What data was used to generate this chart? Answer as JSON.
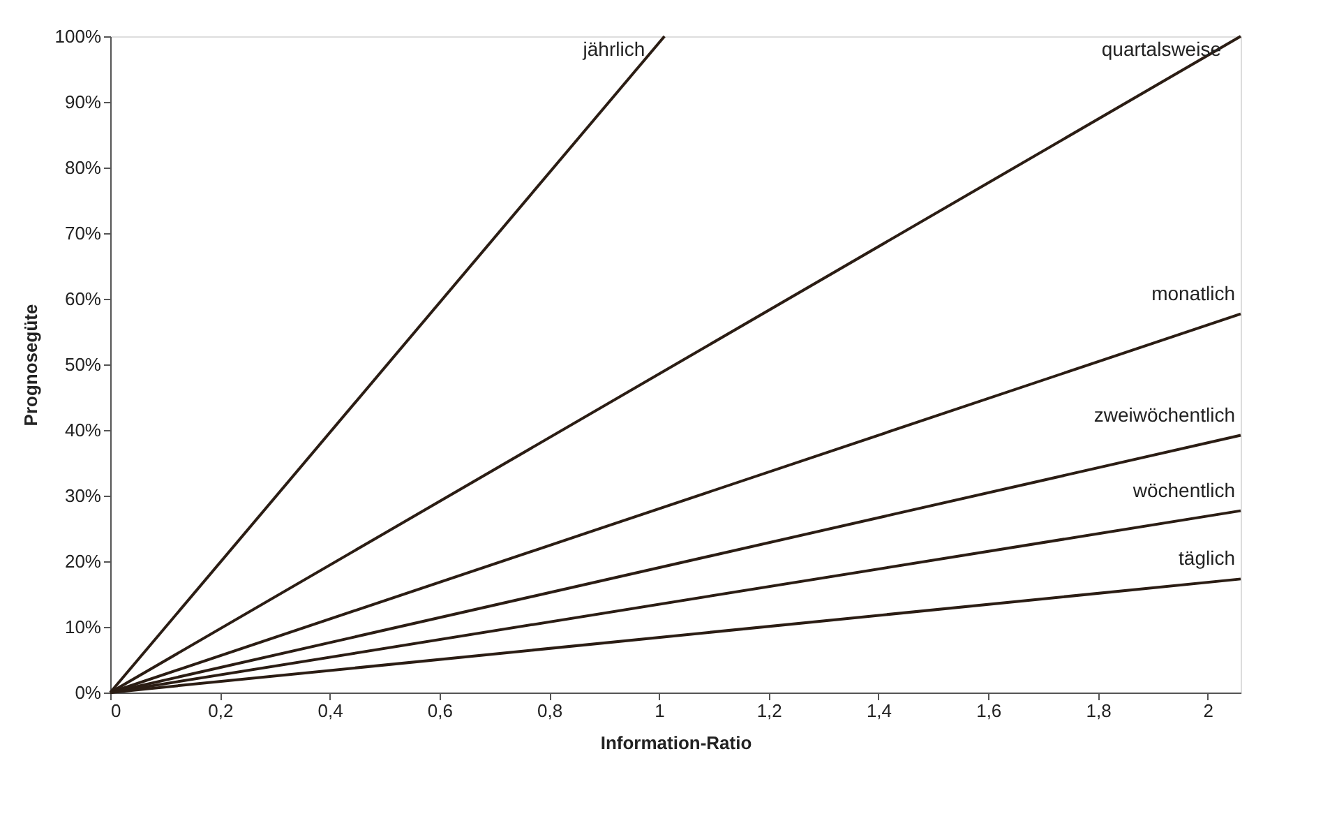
{
  "chart_data": {
    "type": "line",
    "xlabel": "Information-Ratio",
    "ylabel": "Prognosegüte",
    "xlim": [
      0,
      2.06
    ],
    "ylim": [
      0,
      100
    ],
    "xticks": [
      0,
      {
        "value": 0.2,
        "label": "0,2"
      },
      {
        "value": 0.4,
        "label": "0,4"
      },
      {
        "value": 0.6,
        "label": "0,6"
      },
      {
        "value": 0.8,
        "label": "0,8"
      },
      1,
      {
        "value": 1.2,
        "label": "1,2"
      },
      {
        "value": 1.4,
        "label": "1,4"
      },
      {
        "value": 1.6,
        "label": "1,6"
      },
      {
        "value": 1.8,
        "label": "1,8"
      },
      2
    ],
    "yticks": [
      {
        "value": 0,
        "label": "0%"
      },
      {
        "value": 10,
        "label": "10%"
      },
      {
        "value": 20,
        "label": "20%"
      },
      {
        "value": 30,
        "label": "30%"
      },
      {
        "value": 40,
        "label": "40%"
      },
      {
        "value": 50,
        "label": "50%"
      },
      {
        "value": 60,
        "label": "60%"
      },
      {
        "value": 70,
        "label": "70%"
      },
      {
        "value": 80,
        "label": "80%"
      },
      {
        "value": 90,
        "label": "90%"
      },
      {
        "value": 100,
        "label": "100%"
      }
    ],
    "grid": false,
    "marker": "none",
    "line_style": "solid",
    "series": [
      {
        "name": "jährlich",
        "color": "#2b1d14",
        "x": [
          0,
          1.01
        ],
        "values": [
          0,
          100
        ]
      },
      {
        "name": "quartalsweise",
        "color": "#2b1d14",
        "x": [
          0,
          2.06
        ],
        "values": [
          0,
          100
        ]
      },
      {
        "name": "monatlich",
        "color": "#2b1d14",
        "x": [
          0,
          2.06
        ],
        "values": [
          0,
          57.7
        ]
      },
      {
        "name": "zweiwöchentlich",
        "color": "#2b1d14",
        "x": [
          0,
          2.06
        ],
        "values": [
          0,
          39.2
        ]
      },
      {
        "name": "wöchentlich",
        "color": "#2b1d14",
        "x": [
          0,
          2.06
        ],
        "values": [
          0,
          27.7
        ]
      },
      {
        "name": "täglich",
        "color": "#2b1d14",
        "x": [
          0,
          2.06
        ],
        "values": [
          0,
          17.3
        ]
      }
    ]
  }
}
